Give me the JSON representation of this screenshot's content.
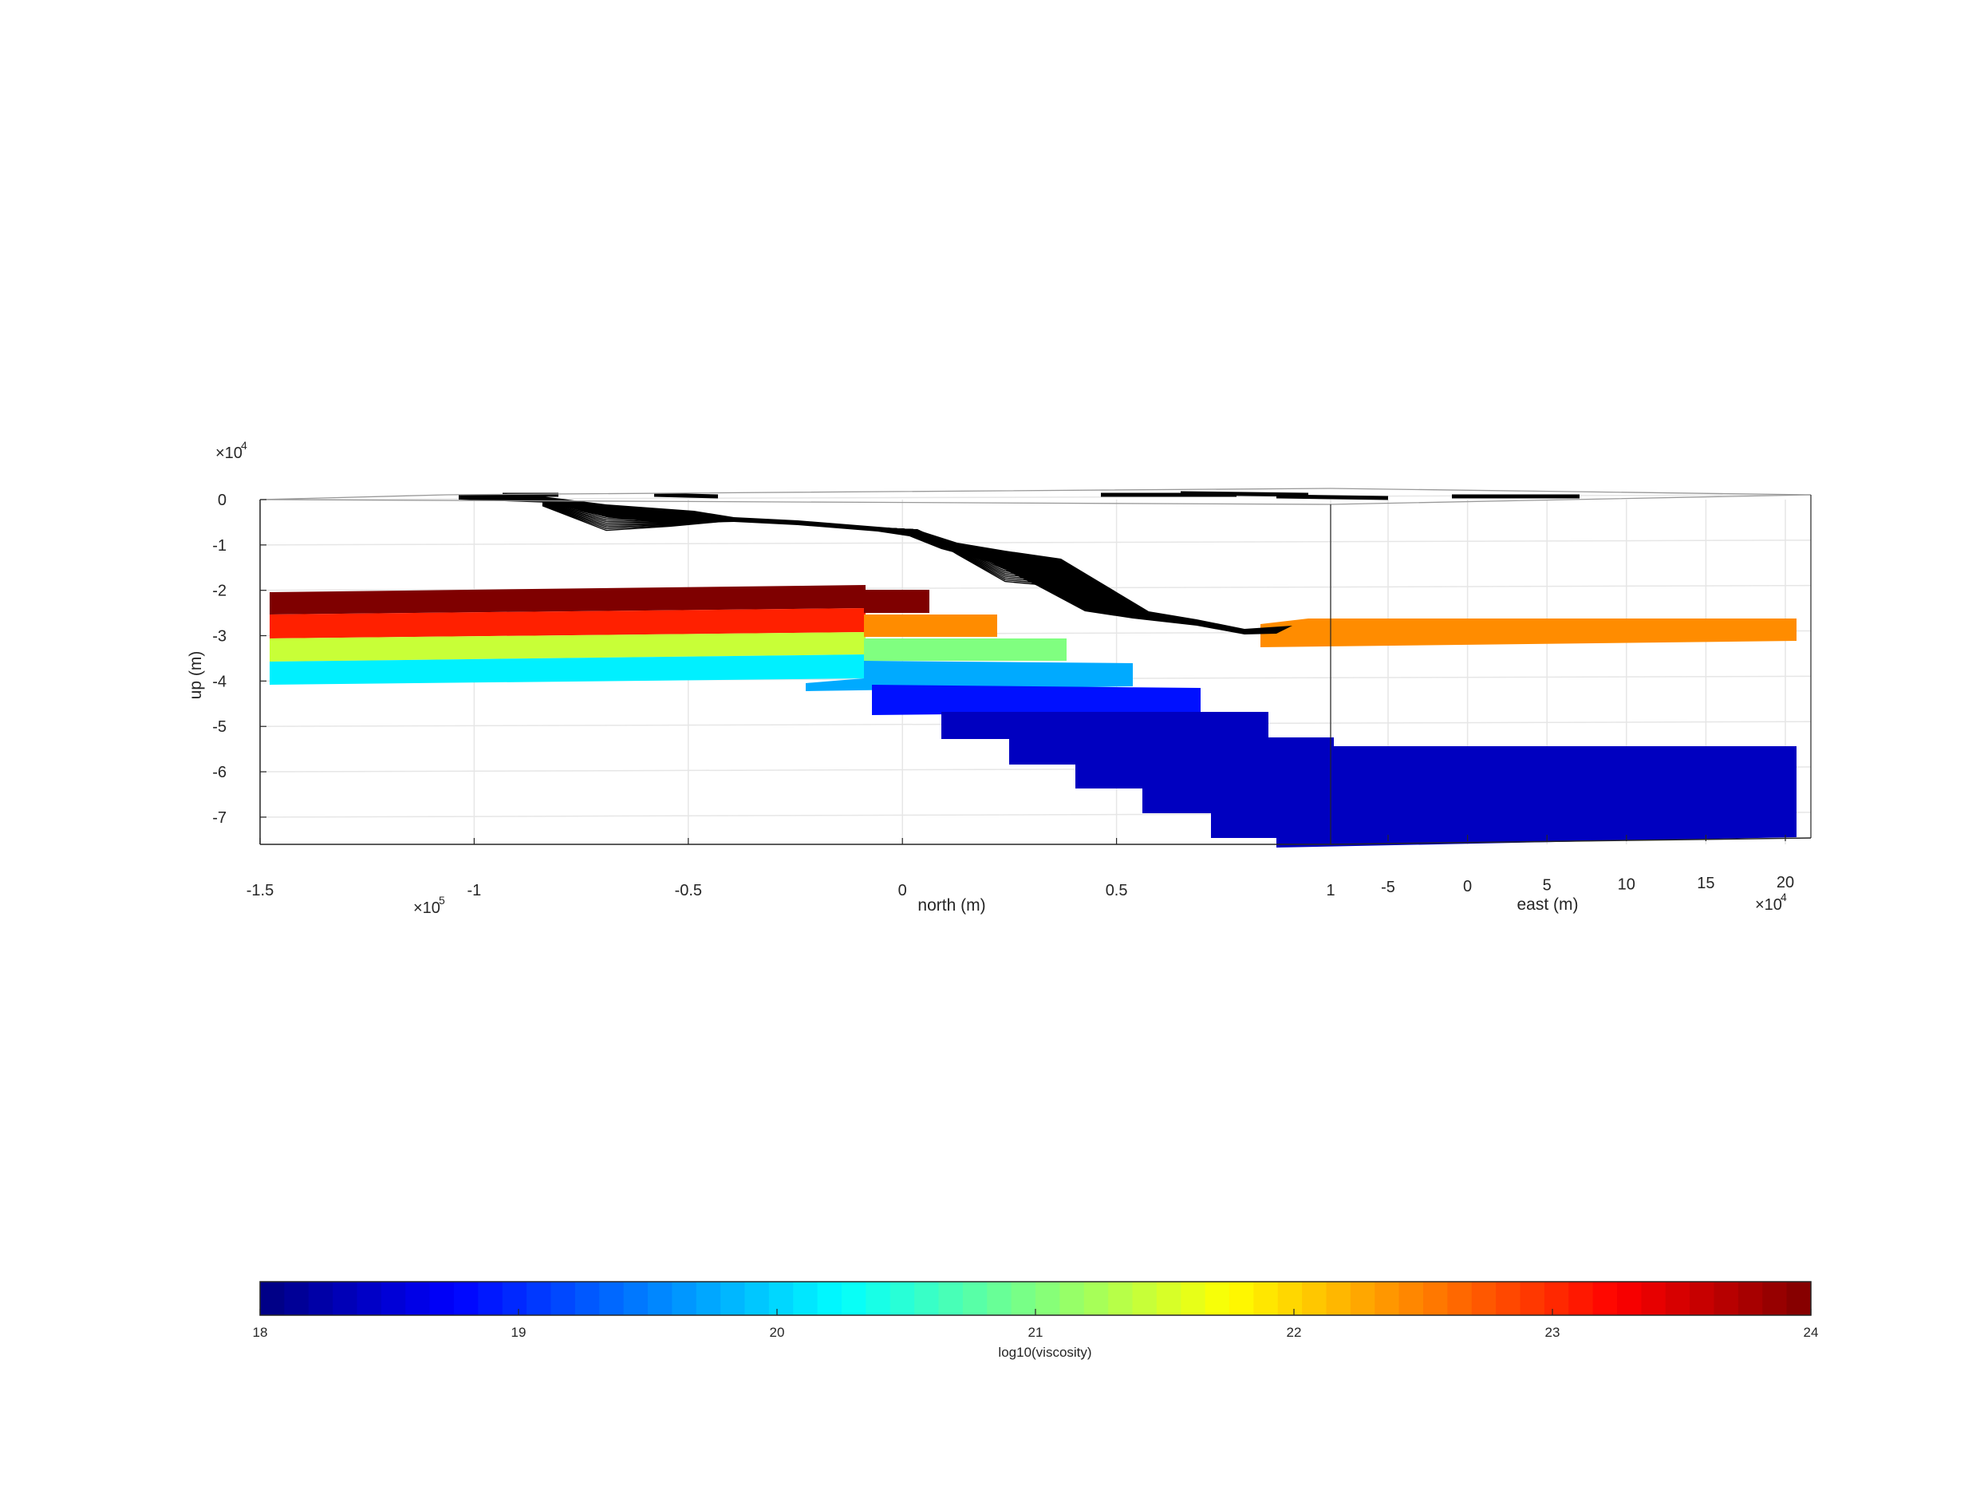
{
  "chart_data": [
    {
      "type": "3d-surface",
      "view": "3D mesh model viewed along the east axis",
      "axes": {
        "north": {
          "label": "north (m)",
          "ticks": [
            "-1.5",
            "-1",
            "-0.5",
            "0",
            "0.5",
            "1"
          ],
          "tick_values": [
            -1.5,
            -1.0,
            -0.5,
            0,
            0.5,
            1.0
          ],
          "exponent": "×10",
          "exponent_power": "5",
          "range": [
            -150000,
            150000
          ]
        },
        "east": {
          "label": "east (m)",
          "ticks": [
            "-5",
            "0",
            "5",
            "10",
            "15",
            "20"
          ],
          "tick_values": [
            -5,
            0,
            5,
            10,
            15,
            20
          ],
          "exponent": "×10",
          "exponent_power": "4",
          "range": [
            -80000,
            210000
          ]
        },
        "up": {
          "label": "up (m)",
          "ticks": [
            "0",
            "-1",
            "-2",
            "-3",
            "-4",
            "-5",
            "-6",
            "-7"
          ],
          "tick_values": [
            0,
            -1,
            -2,
            -3,
            -4,
            -5,
            -6,
            -7
          ],
          "exponent": "×10",
          "exponent_power": "4",
          "range": [
            -75000,
            0
          ]
        }
      },
      "grid": true,
      "fault_mesh": {
        "color": "#000000",
        "description": "subduction interface",
        "trace_north_up": [
          [
            -0.85,
            0
          ],
          [
            -0.4,
            -0.35
          ],
          [
            0.0,
            -0.55
          ],
          [
            0.2,
            -1.2
          ],
          [
            0.4,
            -1.8
          ],
          [
            0.6,
            -2.6
          ],
          [
            0.9,
            -2.85
          ]
        ]
      },
      "viscosity_blocks": [
        {
          "log10_viscosity": 23.8,
          "color": "#7f0000",
          "top_m": -20000,
          "bottom_m": -25000,
          "north_range": [
            -150000,
            -10000
          ]
        },
        {
          "log10_viscosity": 23.2,
          "color": "#ff2000",
          "top_m": -25000,
          "bottom_m": -30000,
          "north_range": [
            -150000,
            -10000
          ]
        },
        {
          "log10_viscosity": 21.4,
          "color": "#c8ff37",
          "top_m": -30000,
          "bottom_m": -35000,
          "north_range": [
            -150000,
            -10000
          ]
        },
        {
          "log10_viscosity": 20.1,
          "color": "#00f0ff",
          "top_m": -35000,
          "bottom_m": -40000,
          "north_range": [
            -150000,
            -10000
          ]
        },
        {
          "log10_viscosity": 23.8,
          "color": "#7f0000",
          "top_m": -20000,
          "bottom_m": -25000,
          "north_range": [
            -10000,
            5000
          ]
        },
        {
          "log10_viscosity": 22.6,
          "color": "#ff8c00",
          "top_m": -25000,
          "bottom_m": -30000,
          "north_range": [
            -10000,
            20000
          ]
        },
        {
          "log10_viscosity": 20.8,
          "color": "#80ff80",
          "top_m": -30000,
          "bottom_m": -35000,
          "north_range": [
            -10000,
            35000
          ]
        },
        {
          "log10_viscosity": 19.8,
          "color": "#00aaff",
          "top_m": -35000,
          "bottom_m": -40000,
          "north_range": [
            -20000,
            50000
          ]
        },
        {
          "log10_viscosity": 18.8,
          "color": "#0010ff",
          "top_m": -40000,
          "bottom_m": -45000,
          "north_range": [
            -5000,
            70000
          ]
        },
        {
          "log10_viscosity": 18.3,
          "color": "#0000c0",
          "top_m": -45000,
          "bottom_m": -75000,
          "north_range": [
            10000,
            150000
          ]
        },
        {
          "log10_viscosity": 22.6,
          "color": "#ff8c00",
          "top_m": -26000,
          "bottom_m": -31000,
          "north_range": [
            80000,
            150000
          ]
        }
      ]
    },
    {
      "type": "colorbar",
      "label": "log10(viscosity)",
      "ticks": [
        "18",
        "19",
        "20",
        "21",
        "22",
        "23",
        "24"
      ],
      "range": [
        18,
        24
      ],
      "colormap": "jet",
      "levels": 64
    }
  ]
}
